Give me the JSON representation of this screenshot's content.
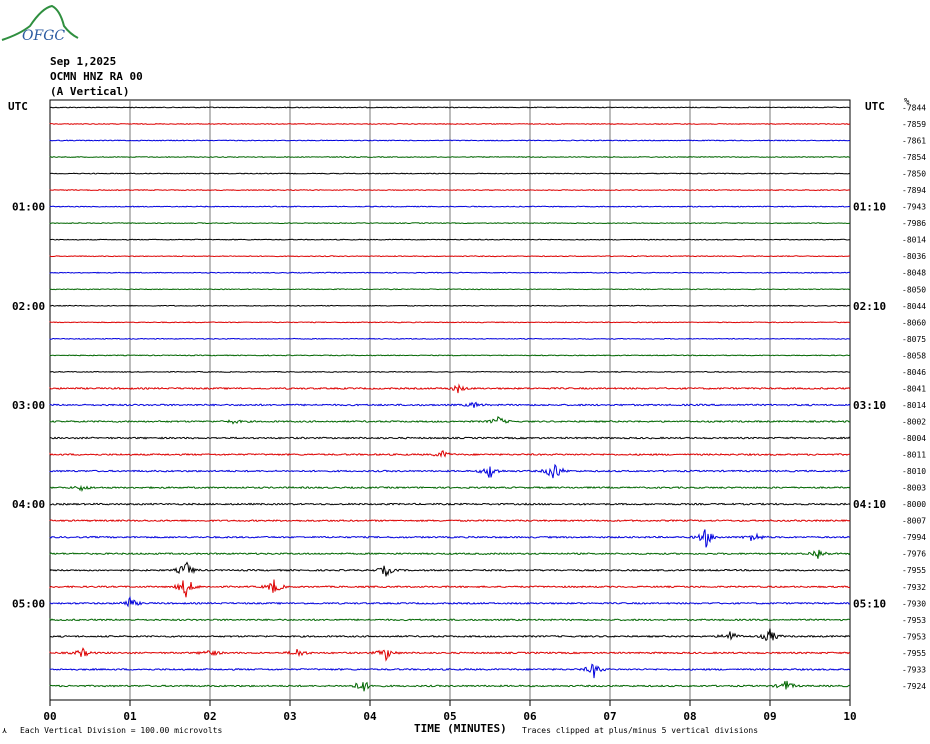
{
  "logo": {
    "text": "OFGC"
  },
  "header": {
    "date": "Sep 1,2025",
    "station": "OCMN HNZ RA 00",
    "component": "(A Vertical)"
  },
  "chart_data": {
    "type": "line",
    "title": "",
    "left_axis_label": "UTC",
    "right_axis_label": "UTC",
    "right_scale_label": "%",
    "left_hour_labels": [
      "01:00",
      "02:00",
      "03:00",
      "04:00",
      "05:00"
    ],
    "right_hour_labels": [
      "01:10",
      "02:10",
      "03:10",
      "04:10",
      "05:10"
    ],
    "xlabel": "TIME (MINUTES)",
    "x_ticks": [
      "00",
      "01",
      "02",
      "03",
      "04",
      "05",
      "06",
      "07",
      "08",
      "09",
      "10"
    ],
    "xlim": [
      0,
      10
    ],
    "trace_colors": [
      "#000000",
      "#dd0000",
      "#0000dd",
      "#006600"
    ],
    "trace_offsets": [
      -7844,
      -7859,
      -7861,
      -7854,
      -7850,
      -7894,
      -7943,
      -7986,
      -8014,
      -8036,
      -8048,
      -8050,
      -8044,
      -8060,
      -8075,
      -8058,
      -8046,
      -8041,
      -8014,
      -8002,
      -8004,
      -8011,
      -8010,
      -8003,
      -8000,
      -8007,
      -7994,
      -7976,
      -7955,
      -7932,
      -7930,
      -7953,
      -7953,
      -7955,
      -7933,
      -7924
    ],
    "events": [
      {
        "trace": 17,
        "minute": 5.1,
        "amp": 4
      },
      {
        "trace": 18,
        "minute": 5.3,
        "amp": 3
      },
      {
        "trace": 19,
        "minute": 2.3,
        "amp": 2
      },
      {
        "trace": 19,
        "minute": 5.6,
        "amp": 5
      },
      {
        "trace": 21,
        "minute": 4.9,
        "amp": 4
      },
      {
        "trace": 22,
        "minute": 5.5,
        "amp": 8
      },
      {
        "trace": 22,
        "minute": 6.3,
        "amp": 12
      },
      {
        "trace": 23,
        "minute": 0.4,
        "amp": 3
      },
      {
        "trace": 26,
        "minute": 8.2,
        "amp": 10
      },
      {
        "trace": 26,
        "minute": 8.8,
        "amp": 6
      },
      {
        "trace": 27,
        "minute": 9.6,
        "amp": 6
      },
      {
        "trace": 28,
        "minute": 1.7,
        "amp": 10
      },
      {
        "trace": 28,
        "minute": 4.2,
        "amp": 6
      },
      {
        "trace": 29,
        "minute": 1.7,
        "amp": 12
      },
      {
        "trace": 29,
        "minute": 2.8,
        "amp": 8
      },
      {
        "trace": 30,
        "minute": 1.0,
        "amp": 6
      },
      {
        "trace": 32,
        "minute": 8.5,
        "amp": 6
      },
      {
        "trace": 32,
        "minute": 9.0,
        "amp": 8
      },
      {
        "trace": 33,
        "minute": 0.4,
        "amp": 5
      },
      {
        "trace": 33,
        "minute": 2.0,
        "amp": 5
      },
      {
        "trace": 33,
        "minute": 3.1,
        "amp": 5
      },
      {
        "trace": 33,
        "minute": 4.2,
        "amp": 7
      },
      {
        "trace": 34,
        "minute": 6.8,
        "amp": 8
      },
      {
        "trace": 35,
        "minute": 3.9,
        "amp": 8
      },
      {
        "trace": 35,
        "minute": 9.2,
        "amp": 6
      }
    ]
  },
  "footer": {
    "scale_note": "Each Vertical Division =  100.00 microvolts",
    "clip_note": "Traces clipped at plus/minus 5 vertical divisions"
  }
}
